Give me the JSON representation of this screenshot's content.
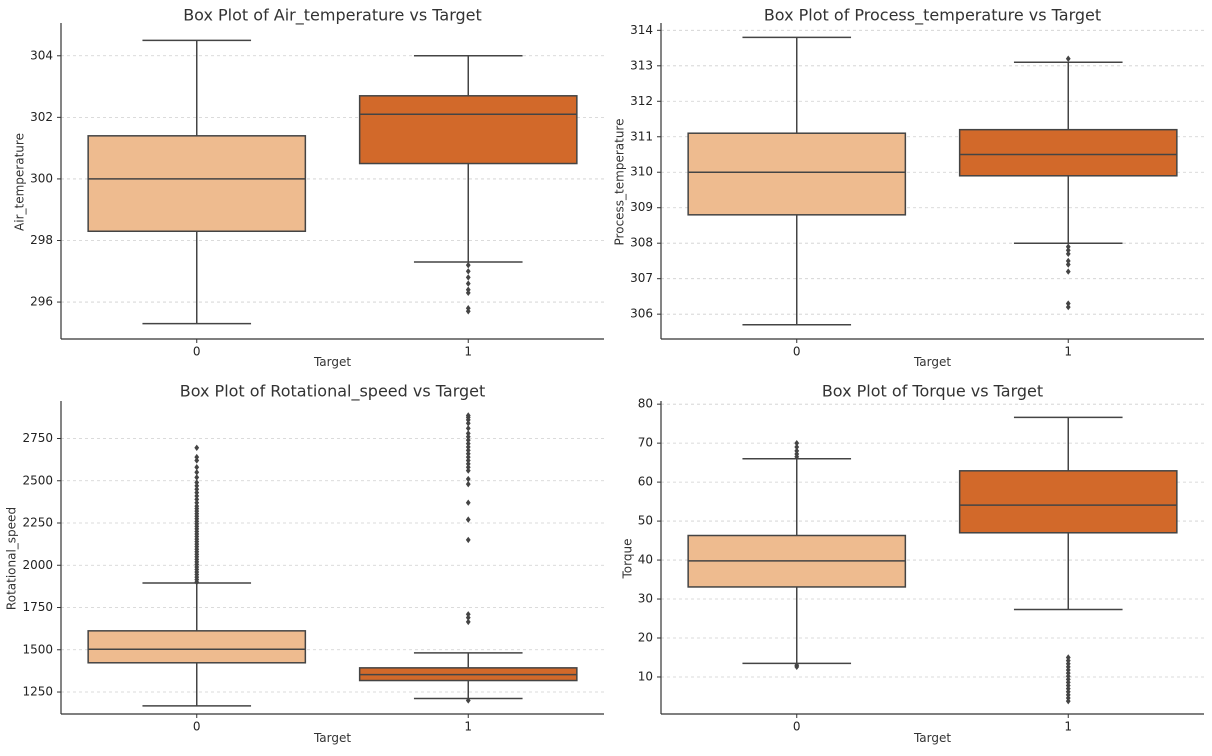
{
  "chart_data": [
    {
      "type": "box",
      "title": "Box Plot of Air_temperature vs Target",
      "xlabel": "Target",
      "ylabel": "Air_temperature",
      "categories": [
        "0",
        "1"
      ],
      "ylim": [
        294.8,
        305.0
      ],
      "yticks": [
        296,
        298,
        300,
        302,
        304
      ],
      "grid": true,
      "boxes": [
        {
          "category": "0",
          "color": "#eebb8f",
          "whisker_low": 295.3,
          "q1": 298.3,
          "median": 300.0,
          "q3": 301.4,
          "whisker_high": 304.5,
          "outliers": []
        },
        {
          "category": "1",
          "color": "#d2692a",
          "whisker_low": 297.3,
          "q1": 300.5,
          "median": 302.1,
          "q3": 302.7,
          "whisker_high": 304.0,
          "outliers": [
            297.2,
            297.0,
            296.8,
            296.6,
            296.4,
            296.3,
            295.8,
            295.7
          ]
        }
      ]
    },
    {
      "type": "box",
      "title": "Box Plot of Process_temperature vs Target",
      "xlabel": "Target",
      "ylabel": "Process_temperature",
      "categories": [
        "0",
        "1"
      ],
      "ylim": [
        305.3,
        314.15
      ],
      "yticks": [
        306,
        307,
        308,
        309,
        310,
        311,
        312,
        313,
        314
      ],
      "grid": true,
      "boxes": [
        {
          "category": "0",
          "color": "#eebb8f",
          "whisker_low": 305.7,
          "q1": 308.8,
          "median": 310.0,
          "q3": 311.1,
          "whisker_high": 313.8,
          "outliers": []
        },
        {
          "category": "1",
          "color": "#d2692a",
          "whisker_low": 308.0,
          "q1": 309.9,
          "median": 310.5,
          "q3": 311.2,
          "whisker_high": 313.1,
          "outliers": [
            313.2,
            307.9,
            307.8,
            307.7,
            307.5,
            307.4,
            307.2,
            306.3,
            306.2
          ]
        }
      ]
    },
    {
      "type": "box",
      "title": "Box Plot of Rotational_speed vs Target",
      "xlabel": "Target",
      "ylabel": "Rotational_speed",
      "categories": [
        "0",
        "1"
      ],
      "ylim": [
        1120,
        2960
      ],
      "yticks": [
        1250,
        1500,
        1750,
        2000,
        2250,
        2500,
        2750
      ],
      "grid": true,
      "boxes": [
        {
          "category": "0",
          "color": "#eebb8f",
          "whisker_low": 1168,
          "q1": 1423,
          "median": 1503,
          "q3": 1612,
          "whisker_high": 1895,
          "outliers": [
            1900,
            1915,
            1930,
            1945,
            1960,
            1975,
            1990,
            2005,
            2020,
            2035,
            2050,
            2065,
            2080,
            2095,
            2110,
            2125,
            2140,
            2155,
            2170,
            2185,
            2200,
            2215,
            2230,
            2245,
            2260,
            2275,
            2290,
            2305,
            2320,
            2335,
            2350,
            2370,
            2390,
            2410,
            2430,
            2450,
            2470,
            2490,
            2520,
            2550,
            2580,
            2620,
            2640,
            2695
          ]
        },
        {
          "category": "1",
          "color": "#d2692a",
          "whisker_low": 1212,
          "q1": 1318,
          "median": 1353,
          "q3": 1393,
          "whisker_high": 1482,
          "outliers": [
            1200,
            1665,
            1690,
            1710,
            2150,
            2270,
            2370,
            2480,
            2510,
            2560,
            2580,
            2600,
            2620,
            2640,
            2660,
            2680,
            2700,
            2720,
            2740,
            2760,
            2780,
            2810,
            2840,
            2860,
            2875,
            2886
          ]
        }
      ]
    },
    {
      "type": "box",
      "title": "Box Plot of Torque vs Target",
      "xlabel": "Target",
      "ylabel": "Torque",
      "categories": [
        "0",
        "1"
      ],
      "ylim": [
        0.5,
        80.3
      ],
      "yticks": [
        10,
        20,
        30,
        40,
        50,
        60,
        70,
        80
      ],
      "grid": true,
      "boxes": [
        {
          "category": "0",
          "color": "#eebb8f",
          "whisker_low": 13.5,
          "q1": 33.1,
          "median": 39.8,
          "q3": 46.3,
          "whisker_high": 66.0,
          "outliers": [
            12.6,
            13.0,
            66.5,
            67.2,
            68.0,
            69.0,
            70.0
          ]
        },
        {
          "category": "1",
          "color": "#d2692a",
          "whisker_low": 27.3,
          "q1": 47.0,
          "median": 54.1,
          "q3": 62.9,
          "whisker_high": 76.6,
          "outliers": [
            3.8,
            4.6,
            5.4,
            6.2,
            7.0,
            7.8,
            8.6,
            9.4,
            10.2,
            11.0,
            11.8,
            12.6,
            13.4,
            14.2,
            15.0
          ]
        }
      ]
    }
  ]
}
